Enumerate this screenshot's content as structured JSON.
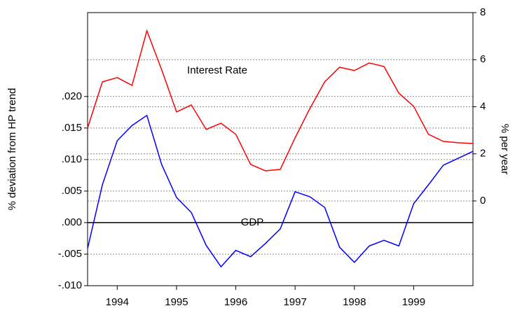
{
  "chart_data": {
    "type": "line",
    "x": [
      1993.5,
      1993.75,
      1994,
      1994.25,
      1994.5,
      1994.75,
      1995,
      1995.25,
      1995.5,
      1995.75,
      1996,
      1996.25,
      1996.5,
      1996.75,
      1997,
      1997.25,
      1997.5,
      1997.75,
      1998,
      1998.25,
      1998.5,
      1998.75,
      1999,
      1999.25,
      1999.5,
      1999.75,
      2000
    ],
    "series": [
      {
        "name": "Interest Rate",
        "color": "#ff0000",
        "axis": "y2",
        "values": [
          3.1,
          5.06,
          5.24,
          4.91,
          7.23,
          5.57,
          3.78,
          4.08,
          3.04,
          3.3,
          2.83,
          1.55,
          1.28,
          1.34,
          2.68,
          3.93,
          5.06,
          5.68,
          5.54,
          5.86,
          5.71,
          4.58,
          4.02,
          2.83,
          2.53,
          2.47,
          2.44
        ]
      },
      {
        "name": "GDP",
        "color": "#0000ff",
        "values": [
          -0.0041,
          0.006,
          0.013,
          0.0154,
          0.017,
          0.0092,
          0.004,
          0.0016,
          -0.0036,
          -0.007,
          -0.0044,
          -0.0054,
          -0.0033,
          -0.001,
          0.0049,
          0.0041,
          0.0024,
          -0.0039,
          -0.0063,
          -0.0037,
          -0.0028,
          -0.0037,
          0.003,
          0.006,
          0.0091,
          0.0102,
          0.0113
        ]
      }
    ],
    "xlim": [
      1993.5,
      2000
    ],
    "xticks": [
      1994,
      1995,
      1996,
      1997,
      1998,
      1999
    ],
    "ylim": [
      -0.01,
      0.0333
    ],
    "yticks": [
      {
        "value": -0.01,
        "label": "-.010"
      },
      {
        "value": -0.005,
        "label": "-.005"
      },
      {
        "value": 0,
        "label": ".000"
      },
      {
        "value": 0.005,
        "label": ".005"
      },
      {
        "value": 0.01,
        "label": ".010"
      },
      {
        "value": 0.015,
        "label": ".015"
      },
      {
        "value": 0.02,
        "label": ".020"
      }
    ],
    "y2lim": [
      -3.6,
      8
    ],
    "y2ticks": [
      0,
      2,
      4,
      6,
      8
    ],
    "y_label": "% deviation from HP trend",
    "y2_label": "% per year",
    "grid": true
  }
}
